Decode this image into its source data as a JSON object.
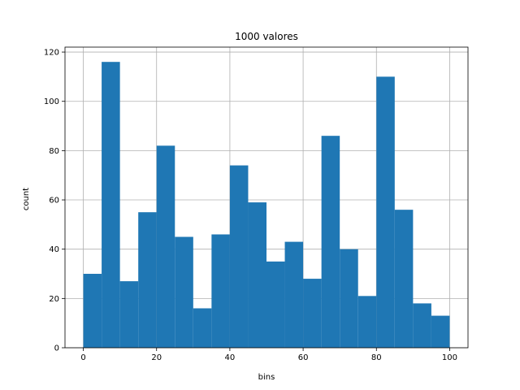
{
  "chart_data": {
    "type": "bar",
    "title": "1000 valores",
    "xlabel": "bins",
    "ylabel": "count",
    "bin_edges": [
      0,
      5,
      10,
      15,
      20,
      25,
      30,
      35,
      40,
      45,
      50,
      55,
      60,
      65,
      70,
      75,
      80,
      85,
      90,
      95,
      100
    ],
    "values": [
      30,
      116,
      27,
      55,
      82,
      45,
      16,
      46,
      74,
      59,
      35,
      43,
      28,
      86,
      40,
      21,
      110,
      56,
      18,
      13
    ],
    "xlim": [
      -5,
      105
    ],
    "ylim": [
      0,
      122
    ],
    "xticks": [
      0,
      20,
      40,
      60,
      80,
      100
    ],
    "yticks": [
      0,
      20,
      40,
      60,
      80,
      100,
      120
    ],
    "grid": true,
    "bar_color": "#1f77b4",
    "grid_color": "#b0b0b0"
  }
}
